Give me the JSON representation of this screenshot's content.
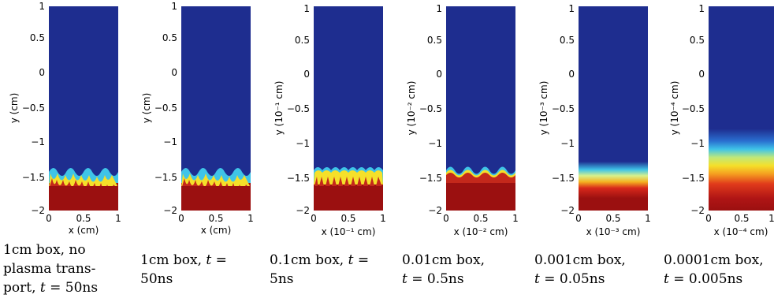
{
  "panels": [
    {
      "id": "p1",
      "ylabel": "y (cm)",
      "xlabel": "x (cm)",
      "yticks": [
        "1",
        "0.5",
        "0",
        "−0.5",
        "−1",
        "−1.5",
        "−2"
      ],
      "xticks": [
        "0",
        "0.5",
        "1"
      ],
      "caption": [
        "1cm box, no",
        "plasma trans-",
        "port, ",
        "t",
        " = 50ns"
      ],
      "style": "mixed_fingers"
    },
    {
      "id": "p2",
      "ylabel": "y (cm)",
      "xlabel": "x (cm)",
      "yticks": [
        "1",
        "0.5",
        "0",
        "−0.5",
        "−1",
        "−1.5",
        "−2"
      ],
      "xticks": [
        "0",
        "0.5",
        "1"
      ],
      "caption": [
        "1cm box, ",
        "t",
        " =",
        "50ns"
      ],
      "style": "mixed_fingers"
    },
    {
      "id": "p3",
      "ylabel": "y (10⁻¹ cm)",
      "xlabel": "x (10⁻¹ cm)",
      "yticks": [
        "1",
        "0.5",
        "0",
        "−0.5",
        "−1",
        "−1.5",
        "−2"
      ],
      "xticks": [
        "0",
        "0.5",
        "1"
      ],
      "caption": [
        "0.1cm box, ",
        "t",
        " =",
        "5ns"
      ],
      "style": "fingers"
    },
    {
      "id": "p4",
      "ylabel": "y (10⁻² cm)",
      "xlabel": "x (10⁻² cm)",
      "yticks": [
        "1",
        "0.5",
        "0",
        "−0.5",
        "−1",
        "−1.5",
        "−2"
      ],
      "xticks": [
        "0",
        "0.5",
        "1"
      ],
      "caption": [
        "0.01cm box,",
        "t",
        " = 0.5ns"
      ],
      "style": "waves"
    },
    {
      "id": "p5",
      "ylabel": "y (10⁻³ cm)",
      "xlabel": "x (10⁻³ cm)",
      "yticks": [
        "1",
        "0.5",
        "0",
        "−0.5",
        "−1",
        "−1.5",
        "−2"
      ],
      "xticks": [
        "0",
        "0.5",
        "1"
      ],
      "caption": [
        "0.001cm box,",
        "t",
        " = 0.05ns"
      ],
      "style": "diffuse"
    },
    {
      "id": "p6",
      "ylabel": "y (10⁻⁴ cm)",
      "xlabel": "x (10⁻⁴ cm)",
      "yticks": [
        "1",
        "0.5",
        "0",
        "−0.5",
        "−1",
        "−1.5",
        "−2"
      ],
      "xticks": [
        "0",
        "0.5",
        "1"
      ],
      "caption": [
        "0.0001cm box,",
        "t",
        " = 0.005ns"
      ],
      "style": "very_diffuse"
    }
  ],
  "colors": {
    "upper_fluid": "#1e2d8f",
    "lower_fluid": "#9b1010",
    "mid": "#f5e02a",
    "cyan": "#3fc4e8"
  }
}
